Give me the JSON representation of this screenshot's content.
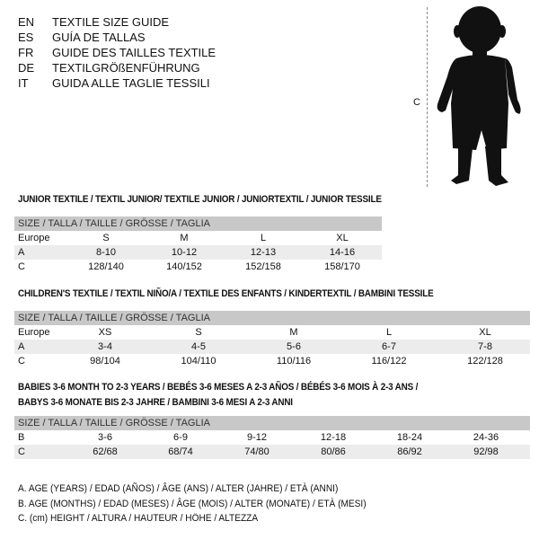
{
  "languages": [
    {
      "code": "EN",
      "text": "TEXTILE SIZE GUIDE"
    },
    {
      "code": "ES",
      "text": "GUÍA DE TALLAS"
    },
    {
      "code": "FR",
      "text": "GUIDE DES TAILLES TEXTILE"
    },
    {
      "code": "DE",
      "text": "TEXTILGRÖßENFÜHRUNG"
    },
    {
      "code": "IT",
      "text": "GUIDA ALLE TAGLIE TESSILI"
    }
  ],
  "figure": {
    "label": "C",
    "icon": "child-silhouette-icon"
  },
  "junior": {
    "title": "JUNIOR TEXTILE / TEXTIL JUNIOR/ TEXTILE JUNIOR / JUNIORTEXTIL / JUNIOR TESSILE",
    "header": "SIZE / TALLA / TAILLE / GRÖSSE / TAGLIA",
    "rows": [
      {
        "label": "Europe",
        "values": [
          "S",
          "M",
          "L",
          "XL"
        ]
      },
      {
        "label": "A",
        "values": [
          "8-10",
          "10-12",
          "12-13",
          "14-16"
        ]
      },
      {
        "label": "C",
        "values": [
          "128/140",
          "140/152",
          "152/158",
          "158/170"
        ]
      }
    ]
  },
  "children": {
    "title": "CHILDREN'S TEXTILE / TEXTIL NIÑO/A / TEXTILE DES ENFANTS / KINDERTEXTIL / BAMBINI TESSILE",
    "header": "SIZE / TALLA / TAILLE / GRÖSSE / TAGLIA",
    "rows": [
      {
        "label": "Europe",
        "values": [
          "XS",
          "S",
          "M",
          "L",
          "XL"
        ]
      },
      {
        "label": "A",
        "values": [
          "3-4",
          "4-5",
          "5-6",
          "6-7",
          "7-8"
        ]
      },
      {
        "label": "C",
        "values": [
          "98/104",
          "104/110",
          "110/116",
          "116/122",
          "122/128"
        ]
      }
    ]
  },
  "babies": {
    "title_line1": "BABIES 3-6 MONTH TO 2-3 YEARS / BEBÉS 3-6 MESES A 2-3 AÑOS / BÉBÉS 3-6 MOIS À 2-3 ANS /",
    "title_line2": "BABYS 3-6 MONATE BIS 2-3 JAHRE / BAMBINI 3-6 MESI A 2-3 ANNI",
    "header": "SIZE / TALLA / TAILLE / GRÖSSE / TAGLIA",
    "rows": [
      {
        "label": "B",
        "values": [
          "3-6",
          "6-9",
          "9-12",
          "12-18",
          "18-24",
          "24-36"
        ]
      },
      {
        "label": "C",
        "values": [
          "62/68",
          "68/74",
          "74/80",
          "80/86",
          "86/92",
          "92/98"
        ]
      }
    ]
  },
  "legend": [
    "A. AGE (YEARS) / EDAD (AÑOS) / ÂGE (ANS) / ALTER (JAHRE) / ETÀ (ANNI)",
    "B. AGE (MONTHS) / EDAD (MESES) / ÂGE (MOIS) / ALTER (MONATE) / ETÀ (MESI)",
    "C. (cm) HEIGHT / ALTURA / HAUTEUR / HÖHE / ALTEZZA"
  ]
}
